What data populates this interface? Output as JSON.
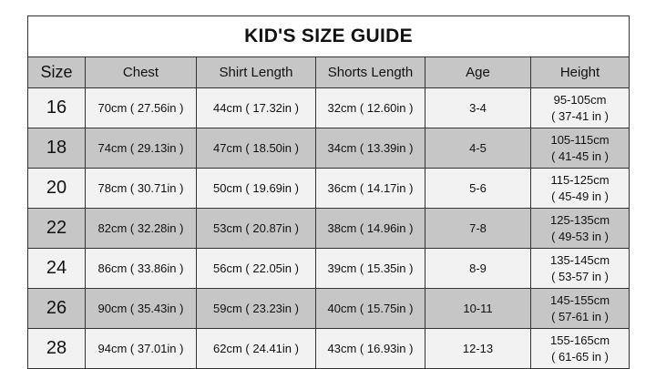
{
  "title": "KID'S SIZE GUIDE",
  "columns": [
    "Size",
    "Chest",
    "Shirt Length",
    "Shorts Length",
    "Age",
    "Height"
  ],
  "rows": [
    {
      "size": "16",
      "chest": "70cm ( 27.56in )",
      "shirt": "44cm ( 17.32in )",
      "shorts": "32cm ( 12.60in )",
      "age": "3-4",
      "height_cm": "95-105cm",
      "height_in": "( 37-41 in )"
    },
    {
      "size": "18",
      "chest": "74cm ( 29.13in )",
      "shirt": "47cm ( 18.50in )",
      "shorts": "34cm ( 13.39in )",
      "age": "4-5",
      "height_cm": "105-115cm",
      "height_in": "( 41-45 in )"
    },
    {
      "size": "20",
      "chest": "78cm ( 30.71in )",
      "shirt": "50cm ( 19.69in )",
      "shorts": "36cm ( 14.17in )",
      "age": "5-6",
      "height_cm": "115-125cm",
      "height_in": "( 45-49 in )"
    },
    {
      "size": "22",
      "chest": "82cm ( 32.28in )",
      "shirt": "53cm ( 20.87in )",
      "shorts": "38cm ( 14.96in )",
      "age": "7-8",
      "height_cm": "125-135cm",
      "height_in": "( 49-53 in )"
    },
    {
      "size": "24",
      "chest": "86cm ( 33.86in )",
      "shirt": "56cm ( 22.05in )",
      "shorts": "39cm ( 15.35in )",
      "age": "8-9",
      "height_cm": "135-145cm",
      "height_in": "( 53-57 in )"
    },
    {
      "size": "26",
      "chest": "90cm ( 35.43in )",
      "shirt": "59cm ( 23.23in )",
      "shorts": "40cm ( 15.75in )",
      "age": "10-11",
      "height_cm": "145-155cm",
      "height_in": "( 57-61 in )"
    },
    {
      "size": "28",
      "chest": "94cm ( 37.01in )",
      "shirt": "62cm ( 24.41in )",
      "shorts": "43cm ( 16.93in )",
      "age": "12-13",
      "height_cm": "155-165cm",
      "height_in": "( 61-65 in )"
    }
  ],
  "colors": {
    "light_row": "#f2f2f2",
    "dark_row": "#c6c6c6",
    "border": "#333333"
  }
}
